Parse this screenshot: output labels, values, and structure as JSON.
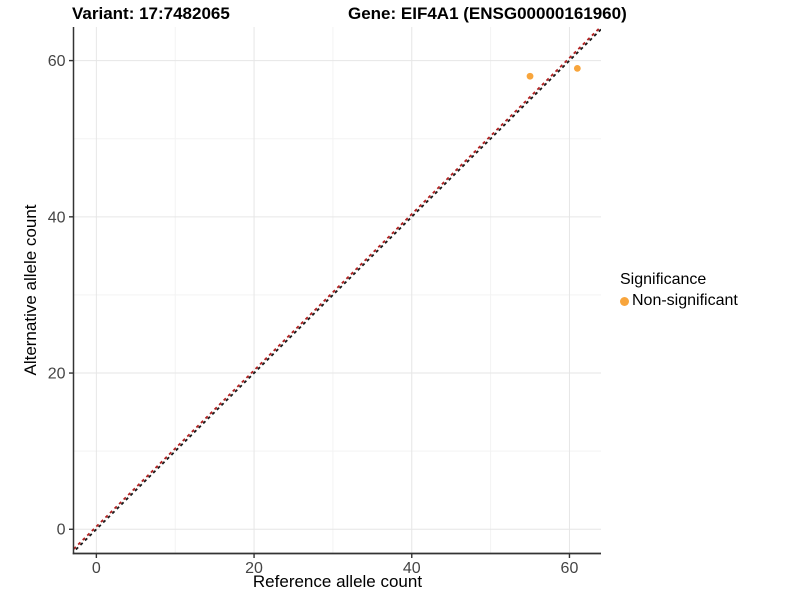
{
  "chart_data": {
    "type": "scatter",
    "titles": {
      "left": "Variant: 17:7482065",
      "right": "Gene: EIF4A1 (ENSG00000161960)"
    },
    "xlabel": "Reference allele count",
    "ylabel": "Alternative allele count",
    "xlim": [
      -2.9,
      64.0
    ],
    "ylim": [
      -3.1,
      64.3
    ],
    "x_ticks": [
      0,
      20,
      40,
      60
    ],
    "y_ticks": [
      0,
      20,
      40,
      60
    ],
    "x_minor_ticks": [
      10,
      30,
      50
    ],
    "y_minor_ticks": [
      10,
      30,
      50
    ],
    "grid": "major+minor",
    "series": [
      {
        "name": "Non-significant",
        "marker": "circle",
        "color": "#F8A53C",
        "size": 3.4,
        "points": [
          [
            55,
            58
          ],
          [
            61,
            59
          ]
        ]
      }
    ],
    "reference_lines": [
      {
        "name": "identity-line-black",
        "slope": 1,
        "intercept": 0,
        "style": "dashed",
        "color": "#1a1a1a"
      },
      {
        "name": "identity-line-red",
        "slope": 1,
        "intercept": 0.35,
        "style": "dashed",
        "color": "#B22222"
      }
    ],
    "legend": {
      "title": "Significance",
      "position": "right",
      "items": [
        {
          "label": "Non-significant",
          "color": "#F8A53C"
        }
      ]
    },
    "colors": {
      "background": "#FFFFFF",
      "axis_line": "#333333",
      "tick_mark": "#333333",
      "tick_label": "#454545",
      "grid_major": "#E6E6E6",
      "grid_minor": "#F3F3F3"
    }
  }
}
